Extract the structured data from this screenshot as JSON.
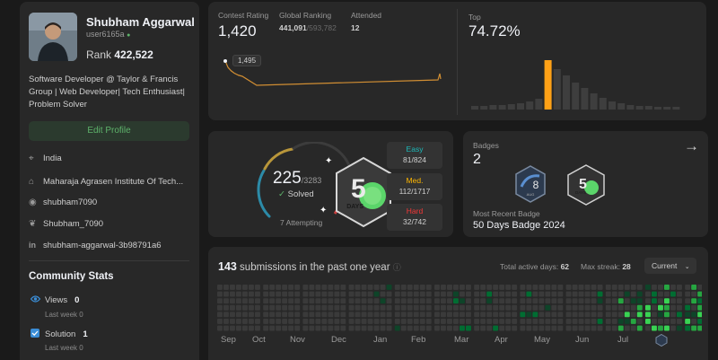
{
  "profile": {
    "name": "Shubham Aggarwal",
    "username": "user6165a",
    "rank_label": "Rank",
    "rank_value": "422,522",
    "bio": "Software Developer @ Taylor & Francis Group | Web Developer| Tech Enthusiast| Problem Solver",
    "edit_label": "Edit Profile",
    "location": "India",
    "school": "Maharaja Agrasen Institute Of Tech...",
    "github": "shubham7090",
    "twitter": "Shubham_7090",
    "linkedin": "shubham-aggarwal-3b98791a6"
  },
  "community": {
    "title": "Community Stats",
    "views_label": "Views",
    "views_value": "0",
    "views_sub": "Last week 0",
    "solution_label": "Solution",
    "solution_value": "1",
    "solution_sub": "Last week 0"
  },
  "contest": {
    "rating_label": "Contest Rating",
    "rating_value": "1,420",
    "ranking_label": "Global Ranking",
    "ranking_value": "441,091",
    "ranking_total": "/593,782",
    "attended_label": "Attended",
    "attended_value": "12",
    "tooltip_value": "1,495",
    "top_label": "Top",
    "top_value": "74.72%"
  },
  "solved": {
    "count": "225",
    "total": "/3283",
    "solved_label": "Solved",
    "attempting": "7 Attempting",
    "badge_days": "DAYS",
    "easy_label": "Easy",
    "easy_value": "81/824",
    "med_label": "Med.",
    "med_value": "112/1717",
    "hard_label": "Hard",
    "hard_value": "32/742",
    "easy_fraction": 0.098,
    "med_fraction": 0.065,
    "hard_fraction": 0.043
  },
  "badges": {
    "label": "Badges",
    "count": "2",
    "badge1_number": "8",
    "badge1_text": "AUG",
    "badge2_text": "DAYS",
    "recent_label": "Most Recent Badge",
    "recent_name": "50 Days Badge 2024"
  },
  "submissions": {
    "count": "143",
    "title_suffix": " submissions in the past one year",
    "active_label": "Total active days:",
    "active_value": "62",
    "streak_label": "Max streak:",
    "streak_value": "28",
    "period": "Current",
    "months": [
      "Sep",
      "Oct",
      "Nov",
      "Dec",
      "Jan",
      "Feb",
      "Mar",
      "Apr",
      "May",
      "Jun",
      "Jul"
    ]
  },
  "colors": {
    "accent_green": "#5eb36b",
    "easy": "#1cbaba",
    "medium": "#ffb700",
    "hard": "#f63737",
    "orange_bar": "#ffa116"
  }
}
